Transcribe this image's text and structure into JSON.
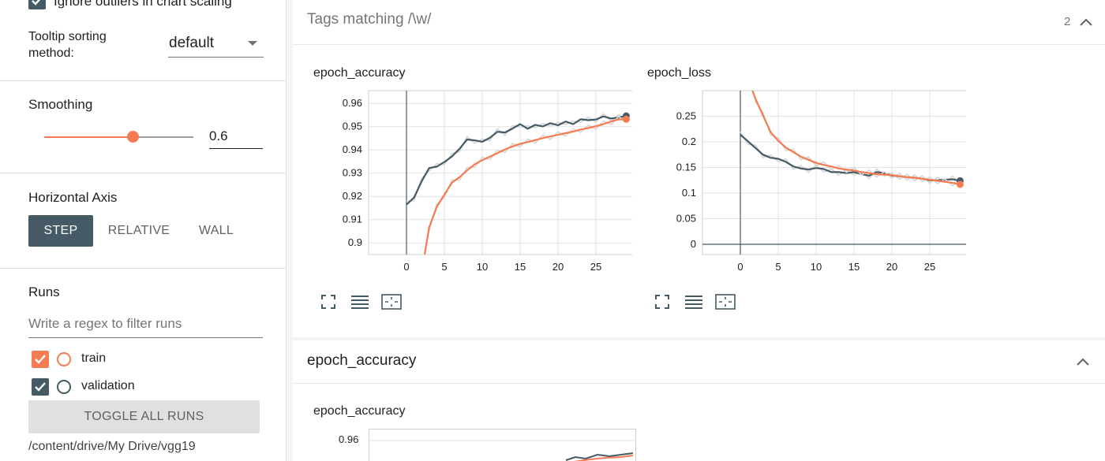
{
  "sidebar": {
    "outliers_label": "Ignore outliers in chart scaling",
    "tooltip_label_line1": "Tooltip sorting",
    "tooltip_label_line2": "method:",
    "tooltip_value": "default",
    "smoothing_label": "Smoothing",
    "smoothing_value": "0.6",
    "smoothing_level": 0.6,
    "axis_label": "Horizontal Axis",
    "axis_options": [
      "STEP",
      "RELATIVE",
      "WALL"
    ],
    "axis_selected": "STEP",
    "runs_label": "Runs",
    "runs_filter_placeholder": "Write a regex to filter runs",
    "runs": [
      {
        "name": "train",
        "checked": true,
        "color": "#f57c52"
      },
      {
        "name": "validation",
        "checked": true,
        "color": "#455a64"
      }
    ],
    "toggle_label": "TOGGLE ALL RUNS",
    "log_dir": "/content/drive/My Drive/vgg19"
  },
  "main": {
    "group1_title": "Tags matching /\\w/",
    "group1_count": "2",
    "group2_title": "epoch_accuracy",
    "card3_title": "epoch_accuracy",
    "card3_tick": "0.96"
  },
  "chart_data": [
    {
      "type": "line",
      "title": "epoch_accuracy",
      "xlabel": "",
      "ylabel": "",
      "x_ticks": [
        0,
        5,
        10,
        15,
        20,
        25
      ],
      "y_ticks": [
        0.9,
        0.91,
        0.92,
        0.93,
        0.94,
        0.95,
        0.96
      ],
      "xlim": [
        -5,
        30
      ],
      "ylim": [
        0.895,
        0.9655
      ],
      "grid": true,
      "series": [
        {
          "name": "validation",
          "color": "#455a64",
          "x": [
            0,
            1,
            2,
            3,
            4,
            5,
            6,
            7,
            8,
            9,
            10,
            11,
            12,
            13,
            14,
            15,
            16,
            17,
            18,
            19,
            20,
            21,
            22,
            23,
            24,
            25,
            26,
            27,
            28,
            29
          ],
          "y": [
            0.9165,
            0.9195,
            0.9265,
            0.9322,
            0.9328,
            0.9348,
            0.9372,
            0.9405,
            0.9445,
            0.9441,
            0.9435,
            0.9452,
            0.9478,
            0.9475,
            0.9492,
            0.9511,
            0.9491,
            0.9508,
            0.9501,
            0.9515,
            0.9506,
            0.9522,
            0.9511,
            0.9532,
            0.9528,
            0.9531,
            0.9544,
            0.9535,
            0.9539,
            0.9546
          ]
        },
        {
          "name": "train",
          "color": "#f57c52",
          "x": [
            2.4,
            3,
            4,
            5,
            6,
            7,
            8,
            9,
            10,
            11,
            12,
            13,
            14,
            15,
            16,
            17,
            18,
            19,
            20,
            21,
            22,
            23,
            24,
            25,
            26,
            27,
            28,
            29
          ],
          "y": [
            0.895,
            0.9068,
            0.9155,
            0.9208,
            0.9259,
            0.9283,
            0.9312,
            0.9338,
            0.9356,
            0.9371,
            0.9386,
            0.9402,
            0.9415,
            0.9426,
            0.9434,
            0.9442,
            0.9451,
            0.9458,
            0.9465,
            0.9472,
            0.9479,
            0.9488,
            0.9494,
            0.9502,
            0.9511,
            0.9522,
            0.9531,
            0.9532
          ]
        }
      ]
    },
    {
      "type": "line",
      "title": "epoch_loss",
      "xlabel": "",
      "ylabel": "",
      "x_ticks": [
        0,
        5,
        10,
        15,
        20,
        25
      ],
      "y_ticks": [
        0,
        0.05,
        0.1,
        0.15,
        0.2,
        0.25
      ],
      "xlim": [
        -5,
        30
      ],
      "ylim": [
        -0.02,
        0.3
      ],
      "grid": true,
      "series": [
        {
          "name": "validation",
          "color": "#455a64",
          "x": [
            0,
            1,
            2,
            3,
            4,
            5,
            6,
            7,
            8,
            9,
            10,
            11,
            12,
            13,
            14,
            15,
            16,
            17,
            18,
            19,
            20,
            21,
            22,
            23,
            24,
            25,
            26,
            27,
            28,
            29
          ],
          "y": [
            0.214,
            0.201,
            0.188,
            0.175,
            0.169,
            0.167,
            0.161,
            0.152,
            0.148,
            0.146,
            0.149,
            0.147,
            0.141,
            0.141,
            0.139,
            0.141,
            0.137,
            0.134,
            0.141,
            0.139,
            0.134,
            0.133,
            0.131,
            0.13,
            0.128,
            0.125,
            0.125,
            0.126,
            0.127,
            0.124
          ]
        },
        {
          "name": "train",
          "color": "#f57c52",
          "x": [
            1.6,
            2,
            3,
            4,
            5,
            6,
            7,
            8,
            9,
            10,
            11,
            12,
            13,
            14,
            15,
            16,
            17,
            18,
            19,
            20,
            21,
            22,
            23,
            24,
            25,
            26,
            27,
            28,
            29
          ],
          "y": [
            0.3,
            0.284,
            0.251,
            0.219,
            0.202,
            0.189,
            0.18,
            0.171,
            0.165,
            0.159,
            0.155,
            0.152,
            0.148,
            0.146,
            0.144,
            0.141,
            0.139,
            0.137,
            0.136,
            0.135,
            0.133,
            0.131,
            0.13,
            0.128,
            0.126,
            0.124,
            0.122,
            0.12,
            0.117
          ]
        }
      ]
    }
  ]
}
